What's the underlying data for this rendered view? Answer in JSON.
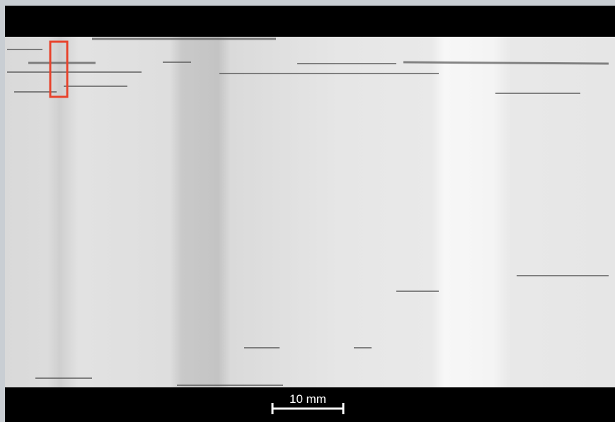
{
  "scale_bar": {
    "label": "10 mm"
  }
}
